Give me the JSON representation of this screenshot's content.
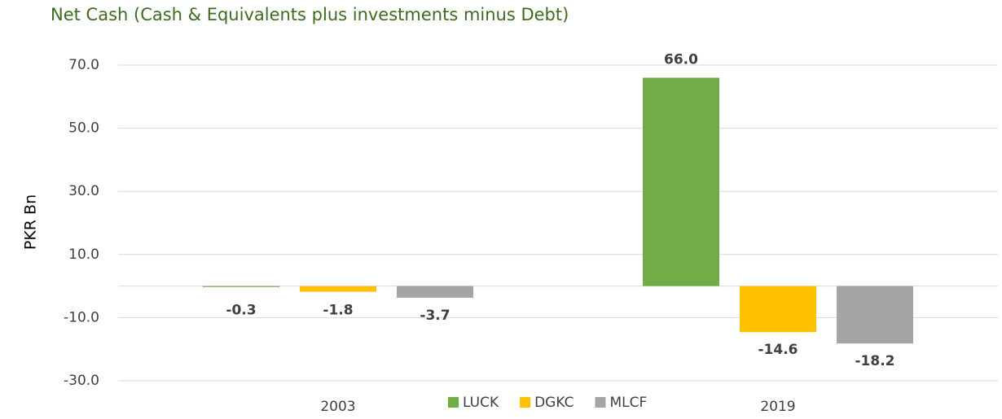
{
  "chart_data": {
    "type": "bar",
    "title": "Net Cash (Cash & Equivalents plus investments minus  Debt)",
    "y_label": "PKR Bn",
    "categories": [
      "2003",
      "2019"
    ],
    "series": [
      {
        "name": "LUCK",
        "color": "#70ad47",
        "values": [
          -0.3,
          66.0
        ],
        "value_labels": [
          "-0.3",
          "66.0"
        ]
      },
      {
        "name": "DGKC",
        "color": "#ffc000",
        "values": [
          -1.8,
          -14.6
        ],
        "value_labels": [
          "-1.8",
          "-14.6"
        ]
      },
      {
        "name": "MLCF",
        "color": "#a5a5a5",
        "values": [
          -3.7,
          -18.2
        ],
        "value_labels": [
          "-3.7",
          "-18.2"
        ]
      }
    ],
    "ylim": [
      -30,
      70
    ],
    "yticks": [
      {
        "value": -30,
        "label": "-30.0"
      },
      {
        "value": -10,
        "label": "-10.0"
      },
      {
        "value": 10,
        "label": "10.0"
      },
      {
        "value": 30,
        "label": "30.0"
      },
      {
        "value": 50,
        "label": "50.0"
      },
      {
        "value": 70,
        "label": "70.0"
      }
    ],
    "grid": true,
    "legend": "bottom"
  }
}
